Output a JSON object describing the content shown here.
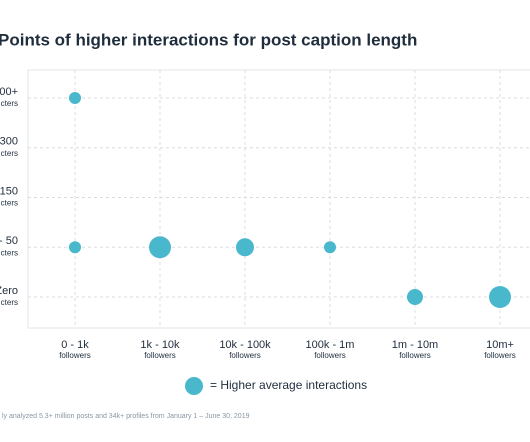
{
  "chart_data": {
    "type": "bubble",
    "title": "Points of higher interactions for post caption length",
    "x_categories": [
      [
        "0 - 1k",
        "followers"
      ],
      [
        "1k - 10k",
        "followers"
      ],
      [
        "10k - 100k",
        "followers"
      ],
      [
        "100k - 1m",
        "followers"
      ],
      [
        "1m - 10m",
        "followers"
      ],
      [
        "10m+",
        "followers"
      ]
    ],
    "y_categories": [
      [
        "00+",
        "cters"
      ],
      [
        "300",
        "cters"
      ],
      [
        "150",
        "cters"
      ],
      [
        "- 50",
        "cters"
      ],
      [
        "Zero",
        "cters"
      ]
    ],
    "series": [
      {
        "name": "= Higher average interactions",
        "color": "#4ab8cc",
        "x": [
          0,
          0,
          1,
          2,
          3,
          4,
          5
        ],
        "y": [
          0,
          3,
          3,
          3,
          3,
          4,
          4
        ],
        "sizes": [
          6,
          6,
          11,
          9,
          6,
          8,
          11
        ]
      }
    ],
    "grid": true,
    "footnote": "ly analyzed 5.3+ million posts and 34k+ profiles from January 1 – June 30, 2019"
  }
}
